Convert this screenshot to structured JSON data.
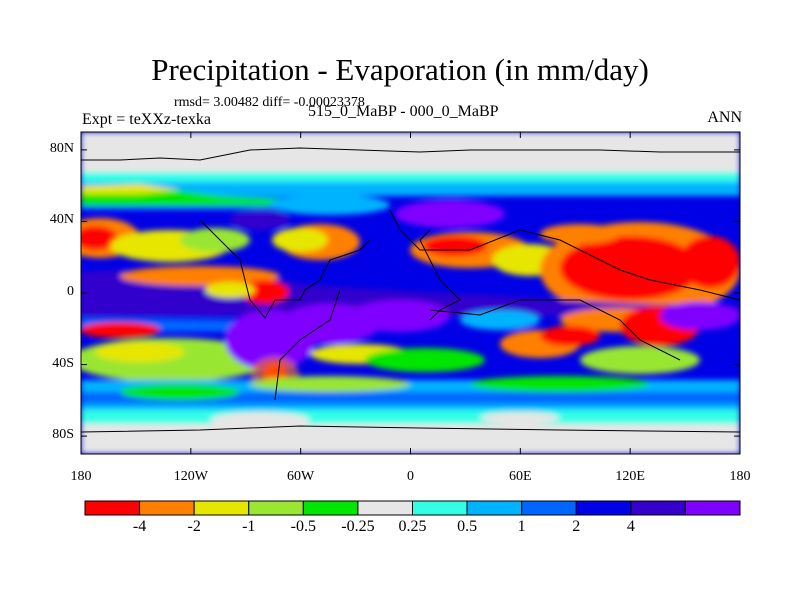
{
  "title": "Precipitation - Evaporation (in mm/day)",
  "stats_line": "rmsd= 3.00482 diff= -0.00023378",
  "experiment_label": "Expt = teXXz-texka",
  "period_label": "515_0_MaBP - 000_0_MaBP",
  "season_label": "ANN",
  "map": {
    "lat_labels": [
      "80N",
      "40N",
      "0",
      "40S",
      "80S"
    ],
    "lat_values": [
      80,
      40,
      0,
      -40,
      -80
    ],
    "lon_labels": [
      "180",
      "120W",
      "60W",
      "0",
      "60E",
      "120E",
      "180"
    ],
    "lon_values": [
      -180,
      -120,
      -60,
      0,
      60,
      120,
      180
    ],
    "lon_range": [
      -180,
      180
    ],
    "lat_range": [
      -90,
      90
    ]
  },
  "colorbar": {
    "colors": [
      "#ff0000",
      "#ff8000",
      "#e6e600",
      "#99e633",
      "#00e600",
      "#e6e6e6",
      "#33ffe6",
      "#00b3ff",
      "#0066ff",
      "#0000e6",
      "#3300cc",
      "#8000ff"
    ],
    "labels": [
      "-4",
      "-2",
      "-1",
      "-0.5",
      "-0.25",
      "0.25",
      "0.5",
      "1",
      "2",
      "4"
    ]
  }
}
